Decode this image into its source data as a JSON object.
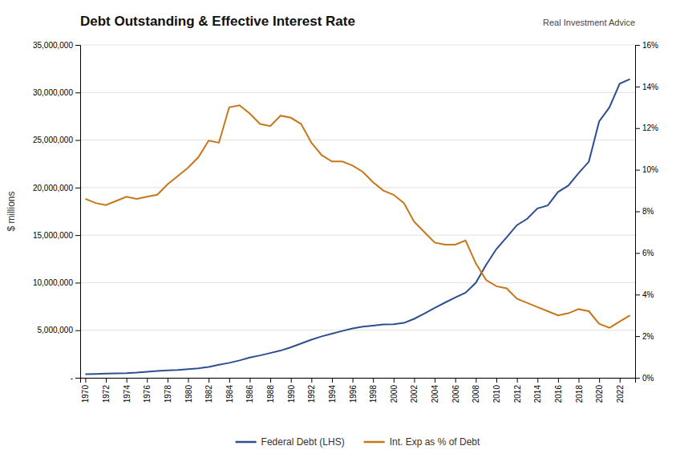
{
  "chart_data": {
    "type": "line",
    "title": "Debt Outstanding & Effective Interest Rate",
    "ylabel": "$ millions",
    "annotations": [
      "Real Investment Advice"
    ],
    "x": [
      1970,
      1971,
      1972,
      1973,
      1974,
      1975,
      1976,
      1977,
      1978,
      1979,
      1980,
      1981,
      1982,
      1983,
      1984,
      1985,
      1986,
      1987,
      1988,
      1989,
      1990,
      1991,
      1992,
      1993,
      1994,
      1995,
      1996,
      1997,
      1998,
      1999,
      2000,
      2001,
      2002,
      2003,
      2004,
      2005,
      2006,
      2007,
      2008,
      2009,
      2010,
      2011,
      2012,
      2013,
      2014,
      2015,
      2016,
      2017,
      2018,
      2019,
      2020,
      2021,
      2022,
      2023
    ],
    "series": [
      {
        "name": "Federal Debt (LHS)",
        "color": "#2e4f8f",
        "values": [
          380000,
          408000,
          437000,
          468000,
          485000,
          542000,
          632000,
          710000,
          780000,
          830000,
          910000,
          998000,
          1142000,
          1377000,
          1572000,
          1823000,
          2125000,
          2350000,
          2602000,
          2861000,
          3210000,
          3600000,
          4005000,
          4355000,
          4645000,
          4923000,
          5182000,
          5370000,
          5480000,
          5607000,
          5630000,
          5771000,
          6200000,
          6762000,
          7355000,
          7906000,
          8452000,
          8951000,
          9987000,
          11878000,
          13530000,
          14766000,
          16052000,
          16720000,
          17812000,
          18122000,
          19540000,
          20206000,
          21517000,
          22720000,
          26946000,
          28430000,
          30930000,
          31400000
        ]
      },
      {
        "name": "Int. Exp as % of Debt",
        "color": "#c8761a",
        "axis": "y2",
        "values": [
          0.086,
          0.084,
          0.083,
          0.085,
          0.087,
          0.086,
          0.087,
          0.088,
          0.093,
          0.097,
          0.101,
          0.106,
          0.114,
          0.113,
          0.13,
          0.131,
          0.127,
          0.122,
          0.121,
          0.126,
          0.125,
          0.122,
          0.113,
          0.107,
          0.104,
          0.104,
          0.102,
          0.099,
          0.094,
          0.09,
          0.088,
          0.084,
          0.075,
          0.07,
          0.065,
          0.064,
          0.064,
          0.066,
          0.055,
          0.047,
          0.044,
          0.043,
          0.038,
          0.036,
          0.034,
          0.032,
          0.03,
          0.031,
          0.033,
          0.032,
          0.026,
          0.024,
          0.027,
          0.03
        ]
      }
    ],
    "xlim": [
      1969.5,
      2023.5
    ],
    "xticks": [
      1970,
      1972,
      1974,
      1976,
      1978,
      1980,
      1982,
      1984,
      1986,
      1988,
      1990,
      1992,
      1994,
      1996,
      1998,
      2000,
      2002,
      2004,
      2006,
      2008,
      2010,
      2012,
      2014,
      2016,
      2018,
      2020,
      2022
    ],
    "ylim": [
      0,
      35000000
    ],
    "yticks": [
      {
        "value": 0,
        "label": "-"
      },
      {
        "value": 5000000,
        "label": "5,000,000"
      },
      {
        "value": 10000000,
        "label": "10,000,000"
      },
      {
        "value": 15000000,
        "label": "15,000,000"
      },
      {
        "value": 20000000,
        "label": "20,000,000"
      },
      {
        "value": 25000000,
        "label": "25,000,000"
      },
      {
        "value": 30000000,
        "label": "30,000,000"
      },
      {
        "value": 35000000,
        "label": "35,000,000"
      }
    ],
    "y2lim": [
      0,
      0.16
    ],
    "y2ticks": [
      {
        "value": 0,
        "label": "0%"
      },
      {
        "value": 0.02,
        "label": "2%"
      },
      {
        "value": 0.04,
        "label": "4%"
      },
      {
        "value": 0.06,
        "label": "6%"
      },
      {
        "value": 0.08,
        "label": "8%"
      },
      {
        "value": 0.1,
        "label": "10%"
      },
      {
        "value": 0.12,
        "label": "12%"
      },
      {
        "value": 0.14,
        "label": "14%"
      },
      {
        "value": 0.16,
        "label": "16%"
      }
    ],
    "grid": true,
    "legend": "bottom"
  }
}
